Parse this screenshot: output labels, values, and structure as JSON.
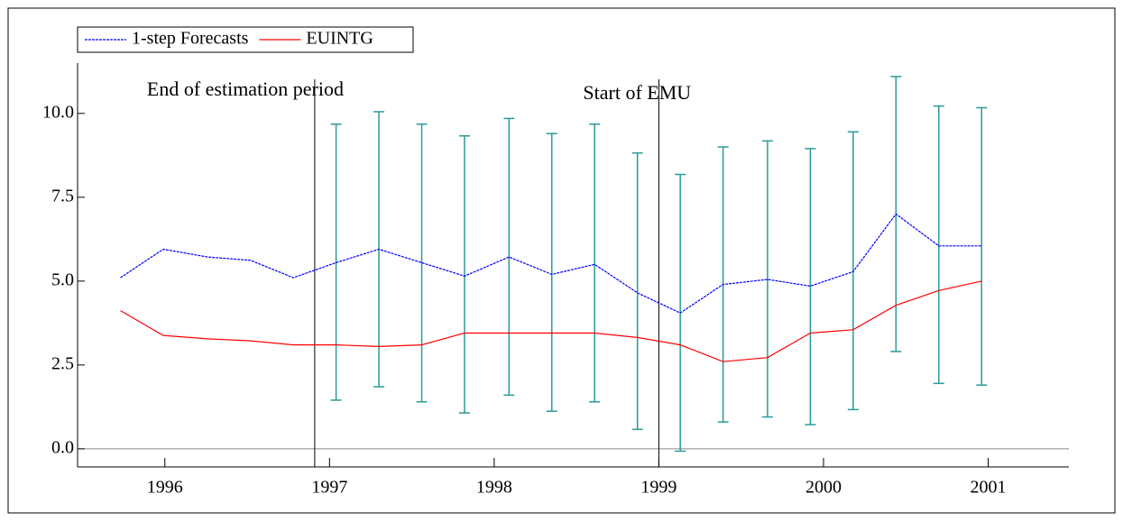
{
  "chart_data": {
    "type": "line",
    "x": [
      1995.73,
      1995.99,
      1996.26,
      1996.52,
      1996.78,
      1997.04,
      1997.3,
      1997.56,
      1997.82,
      1998.09,
      1998.35,
      1998.61,
      1998.87,
      1999.13,
      1999.39,
      1999.66,
      1999.92,
      2000.18,
      2000.44,
      2000.7,
      2000.96
    ],
    "series": [
      {
        "name": "1-step Forecasts",
        "color": "#0000ff",
        "dashed": true,
        "values": [
          5.1,
          5.95,
          5.72,
          5.62,
          5.1,
          5.55,
          5.95,
          5.55,
          5.15,
          5.72,
          5.2,
          5.5,
          4.65,
          4.05,
          4.9,
          5.05,
          4.85,
          5.28,
          7.0,
          6.05,
          6.05
        ],
        "error_low": [
          null,
          null,
          null,
          null,
          null,
          1.45,
          1.85,
          1.4,
          1.07,
          1.6,
          1.12,
          1.4,
          0.58,
          -0.07,
          0.8,
          0.95,
          0.72,
          1.17,
          2.9,
          1.95,
          1.9
        ],
        "error_high": [
          null,
          null,
          null,
          null,
          null,
          9.68,
          10.05,
          9.68,
          9.33,
          9.85,
          9.4,
          9.68,
          8.82,
          8.18,
          9.0,
          9.18,
          8.95,
          9.45,
          11.1,
          10.22,
          10.17
        ],
        "error_color": "#2a9a9a"
      },
      {
        "name": "EUINTG",
        "color": "#ff0000",
        "values": [
          4.12,
          3.38,
          3.28,
          3.22,
          3.1,
          3.1,
          3.05,
          3.1,
          3.45,
          3.45,
          3.45,
          3.45,
          3.32,
          3.1,
          2.6,
          2.72,
          3.45,
          3.55,
          4.28,
          4.72,
          5.0
        ]
      }
    ],
    "annotations": [
      {
        "text": "End of estimation period",
        "x": 1996.91
      },
      {
        "text": "Start of EMU",
        "x": 1999.0
      }
    ],
    "xlim": [
      1995.47,
      2001.49
    ],
    "xticks": [
      1996,
      1997,
      1998,
      1999,
      2000,
      2001
    ],
    "ylim": [
      -0.54,
      11.5
    ],
    "yticks": [
      {
        "value": 0,
        "label": "0.0"
      },
      {
        "value": 2.5,
        "label": "2.5"
      },
      {
        "value": 5,
        "label": "5.0"
      },
      {
        "value": 7.5,
        "label": "7.5"
      },
      {
        "value": 10,
        "label": "10.0"
      }
    ],
    "zero_line": true,
    "legend": "top-left"
  }
}
